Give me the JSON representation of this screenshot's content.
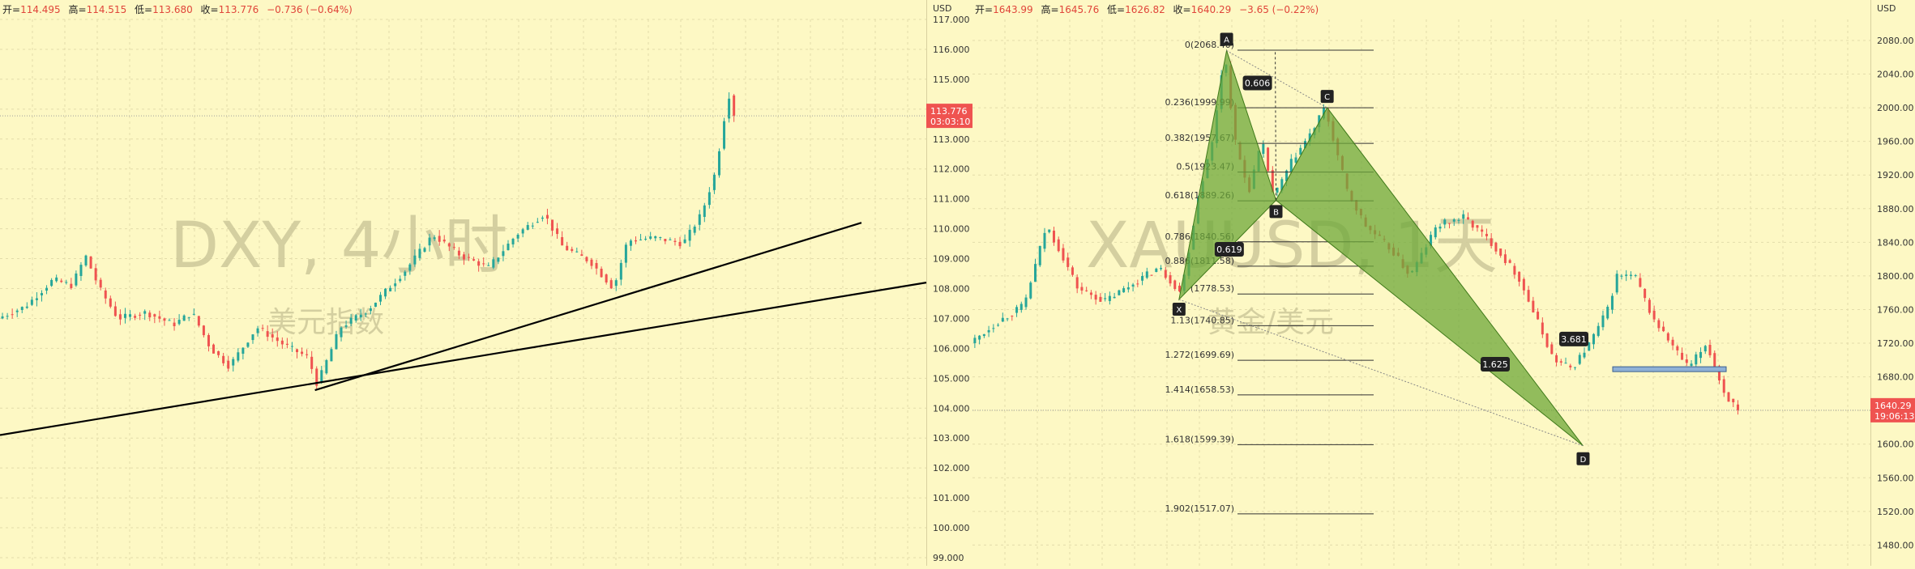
{
  "left_chart": {
    "header": {
      "open_label": "开=",
      "open": "114.495",
      "high_label": "高=",
      "high": "114.515",
      "low_label": "低=",
      "low": "113.680",
      "close_label": "收=",
      "close": "113.776",
      "change": "−0.736 (−0.64%)"
    },
    "watermark_title": "DXY, 4小时",
    "watermark_subtitle": "美元指数",
    "currency": "USD",
    "last_price_label": "113.776",
    "countdown": "03:03:10",
    "colors": {
      "up": "#26a69a",
      "down": "#ef5350",
      "price_tag": "#ef5350",
      "trendline": "#000000"
    }
  },
  "right_chart": {
    "header": {
      "open_label": "开=",
      "open": "1643.99",
      "high_label": "高=",
      "high": "1645.76",
      "low_label": "低=",
      "low": "1626.82",
      "close_label": "收=",
      "close": "1640.29",
      "change": "−3.65 (−0.22%)"
    },
    "watermark_title": "XAUUSD, 1天",
    "watermark_subtitle": "黄金/美元",
    "currency": "USD",
    "last_price_label": "1640.29",
    "countdown": "19:06:13",
    "colors": {
      "up": "#26a69a",
      "down": "#ef5350",
      "price_tag": "#ef5350",
      "pattern_fill": "#6ea83a",
      "pattern_stroke": "#3f7a1a"
    }
  },
  "chart_data": [
    {
      "type": "candlestick",
      "title": "DXY, 4小时",
      "subtitle": "美元指数",
      "ylabel": "USD",
      "ylim": [
        99,
        117
      ],
      "yticks": [
        "117.000",
        "116.000",
        "115.000",
        "114.000",
        "113.000",
        "112.000",
        "111.000",
        "110.000",
        "109.000",
        "108.000",
        "107.000",
        "106.000",
        "105.000",
        "104.000",
        "103.000",
        "102.000",
        "101.000",
        "100.000",
        "99.000"
      ],
      "path": [
        {
          "t": 0.0,
          "v": 107.0
        },
        {
          "t": 0.03,
          "v": 107.4
        },
        {
          "t": 0.06,
          "v": 108.3
        },
        {
          "t": 0.08,
          "v": 108.1
        },
        {
          "t": 0.095,
          "v": 109.1
        },
        {
          "t": 0.11,
          "v": 108.0
        },
        {
          "t": 0.13,
          "v": 107.0
        },
        {
          "t": 0.16,
          "v": 107.2
        },
        {
          "t": 0.19,
          "v": 106.8
        },
        {
          "t": 0.21,
          "v": 107.2
        },
        {
          "t": 0.23,
          "v": 106.0
        },
        {
          "t": 0.25,
          "v": 105.4
        },
        {
          "t": 0.28,
          "v": 106.7
        },
        {
          "t": 0.31,
          "v": 106.1
        },
        {
          "t": 0.335,
          "v": 105.7
        },
        {
          "t": 0.345,
          "v": 104.8
        },
        {
          "t": 0.37,
          "v": 106.7
        },
        {
          "t": 0.4,
          "v": 107.3
        },
        {
          "t": 0.44,
          "v": 108.6
        },
        {
          "t": 0.47,
          "v": 109.8
        },
        {
          "t": 0.5,
          "v": 109.1
        },
        {
          "t": 0.53,
          "v": 108.7
        },
        {
          "t": 0.56,
          "v": 109.8
        },
        {
          "t": 0.59,
          "v": 110.5
        },
        {
          "t": 0.61,
          "v": 109.4
        },
        {
          "t": 0.64,
          "v": 108.9
        },
        {
          "t": 0.665,
          "v": 108.0
        },
        {
          "t": 0.68,
          "v": 109.6
        },
        {
          "t": 0.71,
          "v": 109.7
        },
        {
          "t": 0.74,
          "v": 109.5
        },
        {
          "t": 0.76,
          "v": 110.5
        },
        {
          "t": 0.775,
          "v": 111.9
        },
        {
          "t": 0.785,
          "v": 113.8
        },
        {
          "t": 0.79,
          "v": 114.5
        },
        {
          "t": 0.795,
          "v": 113.78
        }
      ],
      "trendlines": [
        {
          "t1": 0.0,
          "v1": 103.1,
          "t2": 1.0,
          "v2": 108.2
        },
        {
          "t1": 0.34,
          "v1": 104.6,
          "t2": 0.93,
          "v2": 110.2
        }
      ],
      "last_price": 113.776
    },
    {
      "type": "candlestick",
      "title": "XAUUSD, 1天",
      "subtitle": "黄金/美元",
      "ylabel": "USD",
      "ylim": [
        1465,
        2105
      ],
      "yticks": [
        "2080.00",
        "2040.00",
        "2000.00",
        "1960.00",
        "1920.00",
        "1880.00",
        "1840.00",
        "1800.00",
        "1760.00",
        "1720.00",
        "1680.00",
        "1640.00",
        "1600.00",
        "1560.00",
        "1520.00",
        "1480.00"
      ],
      "path": [
        {
          "t": 0.0,
          "v": 1720
        },
        {
          "t": 0.03,
          "v": 1745
        },
        {
          "t": 0.06,
          "v": 1765
        },
        {
          "t": 0.085,
          "v": 1860
        },
        {
          "t": 0.1,
          "v": 1830
        },
        {
          "t": 0.12,
          "v": 1785
        },
        {
          "t": 0.15,
          "v": 1770
        },
        {
          "t": 0.18,
          "v": 1790
        },
        {
          "t": 0.21,
          "v": 1810
        },
        {
          "t": 0.235,
          "v": 1780
        },
        {
          "t": 0.255,
          "v": 1900
        },
        {
          "t": 0.27,
          "v": 1960
        },
        {
          "t": 0.283,
          "v": 2068
        },
        {
          "t": 0.295,
          "v": 1960
        },
        {
          "t": 0.31,
          "v": 1900
        },
        {
          "t": 0.325,
          "v": 1960
        },
        {
          "t": 0.338,
          "v": 1893
        },
        {
          "t": 0.36,
          "v": 1940
        },
        {
          "t": 0.38,
          "v": 1970
        },
        {
          "t": 0.395,
          "v": 2000
        },
        {
          "t": 0.42,
          "v": 1900
        },
        {
          "t": 0.44,
          "v": 1860
        },
        {
          "t": 0.47,
          "v": 1830
        },
        {
          "t": 0.49,
          "v": 1800
        },
        {
          "t": 0.52,
          "v": 1860
        },
        {
          "t": 0.55,
          "v": 1870
        },
        {
          "t": 0.58,
          "v": 1840
        },
        {
          "t": 0.61,
          "v": 1800
        },
        {
          "t": 0.63,
          "v": 1750
        },
        {
          "t": 0.65,
          "v": 1700
        },
        {
          "t": 0.67,
          "v": 1690
        },
        {
          "t": 0.69,
          "v": 1720
        },
        {
          "t": 0.71,
          "v": 1760
        },
        {
          "t": 0.72,
          "v": 1800
        },
        {
          "t": 0.74,
          "v": 1800
        },
        {
          "t": 0.76,
          "v": 1750
        },
        {
          "t": 0.78,
          "v": 1720
        },
        {
          "t": 0.8,
          "v": 1690
        },
        {
          "t": 0.82,
          "v": 1720
        },
        {
          "t": 0.84,
          "v": 1660
        },
        {
          "t": 0.855,
          "v": 1640.29
        }
      ],
      "fib_levels": [
        {
          "ratio": "0",
          "price": 2068.4,
          "label": "0(2068.40)"
        },
        {
          "ratio": "0.236",
          "price": 1999.99,
          "label": "0.236(1999.99)"
        },
        {
          "ratio": "0.382",
          "price": 1957.67,
          "label": "0.382(1957.67)"
        },
        {
          "ratio": "0.5",
          "price": 1923.47,
          "label": "0.5(1923.47)"
        },
        {
          "ratio": "0.618",
          "price": 1889.26,
          "label": "0.618(1889.26)"
        },
        {
          "ratio": "0.786",
          "price": 1840.56,
          "label": "0.786(1840.56)"
        },
        {
          "ratio": "0.886",
          "price": 1811.58,
          "label": "0.886(1811.58)"
        },
        {
          "ratio": "1",
          "price": 1778.53,
          "label": "(1778.53)"
        },
        {
          "ratio": "1.13",
          "price": 1740.85,
          "label": "1.13(1740.85)"
        },
        {
          "ratio": "1.272",
          "price": 1699.69,
          "label": "1.272(1699.69)"
        },
        {
          "ratio": "1.414",
          "price": 1658.53,
          "label": "1.414(1658.53)"
        },
        {
          "ratio": "1.618",
          "price": 1599.39,
          "label": "1.618(1599.39)"
        },
        {
          "ratio": "1.902",
          "price": 1517.07,
          "label": "1.902(1517.07)"
        }
      ],
      "harmonic_points": [
        {
          "name": "X",
          "t": 0.23,
          "v": 1772
        },
        {
          "name": "A",
          "t": 0.283,
          "v": 2068
        },
        {
          "name": "B",
          "t": 0.338,
          "v": 1890
        },
        {
          "name": "C",
          "t": 0.395,
          "v": 2000
        },
        {
          "name": "D",
          "t": 0.68,
          "v": 1598
        }
      ],
      "ratio_labels": [
        "0.606",
        "0.619",
        "3.681",
        "1.625"
      ],
      "last_price": 1640.29
    }
  ]
}
